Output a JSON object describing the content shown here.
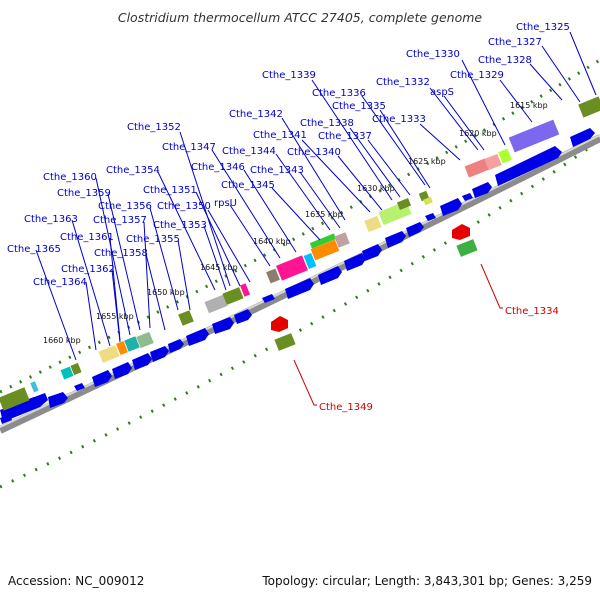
{
  "title": "Clostridium thermocellum ATCC 27405, complete genome",
  "footer": {
    "accession": "Accession: NC_009012",
    "summary": "Topology: circular; Length: 3,843,301 bp; Genes: 3,259"
  },
  "colors": {
    "backbone": "#8c8c8c",
    "gene_forward": "#0000e6",
    "label_forward": "#0000cc",
    "label_reverse": "#cc0000",
    "tick": "#2e7d1e",
    "reverse_arrow": "#e60000"
  },
  "scale_labels": [
    "1615 kbp",
    "1620 kbp",
    "1625 kbp",
    "1630 kbp",
    "1635 kbp",
    "1640 kbp",
    "1645 kbp",
    "1650 kbp",
    "1655 kbp",
    "1660 kbp"
  ],
  "gene_labels": [
    "Cthe_1325",
    "Cthe_1327",
    "Cthe_1328",
    "Cthe_1329",
    "Cthe_1330",
    "Cthe_1332",
    "aspS",
    "Cthe_1333",
    "Cthe_1335",
    "Cthe_1336",
    "Cthe_1337",
    "Cthe_1338",
    "Cthe_1339",
    "Cthe_1340",
    "Cthe_1341",
    "Cthe_1342",
    "Cthe_1343",
    "Cthe_1344",
    "Cthe_1345",
    "Cthe_1346",
    "Cthe_1347",
    "rpsU",
    "Cthe_1350",
    "Cthe_1351",
    "Cthe_1352",
    "Cthe_1353",
    "Cthe_1354",
    "Cthe_1355",
    "Cthe_1356",
    "Cthe_1357",
    "Cthe_1358",
    "Cthe_1359",
    "Cthe_1360",
    "Cthe_1361",
    "Cthe_1362",
    "Cthe_1363",
    "Cthe_1364",
    "Cthe_1365"
  ],
  "reverse_labels": [
    "Cthe_1334",
    "Cthe_1349"
  ]
}
